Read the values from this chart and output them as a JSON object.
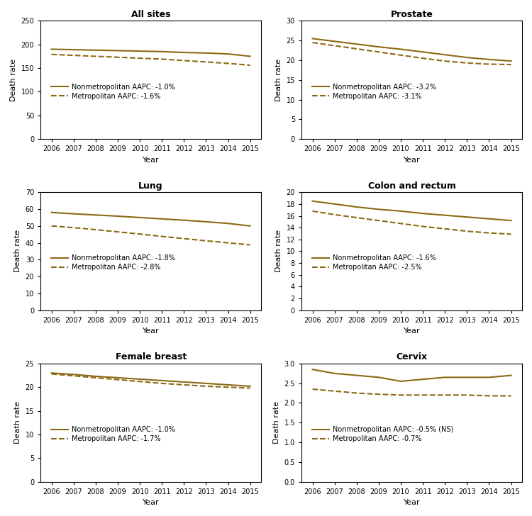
{
  "panels": [
    {
      "title": "All sites",
      "ylabel": "Death rate",
      "xlabel": "Year",
      "ylim": [
        0,
        250
      ],
      "yticks": [
        0,
        50,
        100,
        150,
        200,
        250
      ],
      "nonmet": [
        190,
        189,
        188,
        187,
        186,
        185,
        183,
        182,
        180,
        175
      ],
      "met": [
        179,
        177,
        175,
        173,
        171,
        169,
        166,
        163,
        160,
        156
      ],
      "legend1": "Nonmetropolitan AAPC: -1.0%",
      "legend2": "Metropolitan AAPC: -1.6%"
    },
    {
      "title": "Prostate",
      "ylabel": "Death rate",
      "xlabel": "Year",
      "ylim": [
        0,
        30
      ],
      "yticks": [
        0,
        5,
        10,
        15,
        20,
        25,
        30
      ],
      "nonmet": [
        25.5,
        24.8,
        24.1,
        23.4,
        22.8,
        22.1,
        21.4,
        20.7,
        20.2,
        19.8
      ],
      "met": [
        24.5,
        23.7,
        22.9,
        22.1,
        21.3,
        20.5,
        19.8,
        19.3,
        19.0,
        18.9
      ],
      "legend1": "Nonmetropolitan AAPC: -3.2%",
      "legend2": "Metropolitan AAPC: -3.1%"
    },
    {
      "title": "Lung",
      "ylabel": "Death rate",
      "xlabel": "Year",
      "ylim": [
        0,
        70
      ],
      "yticks": [
        0,
        10,
        20,
        30,
        40,
        50,
        60,
        70
      ],
      "nonmet": [
        58,
        57.2,
        56.5,
        55.8,
        55.0,
        54.2,
        53.4,
        52.5,
        51.5,
        50.0
      ],
      "met": [
        50,
        49.0,
        47.8,
        46.5,
        45.2,
        43.8,
        42.5,
        41.2,
        40.0,
        38.8
      ],
      "legend1": "Nonmetropolitan AAPC: -1.8%",
      "legend2": "Metropolitan AAPC: -2.8%"
    },
    {
      "title": "Colon and rectum",
      "ylabel": "Death rate",
      "xlabel": "Year",
      "ylim": [
        0,
        20
      ],
      "yticks": [
        0,
        2,
        4,
        6,
        8,
        10,
        12,
        14,
        16,
        18,
        20
      ],
      "nonmet": [
        18.5,
        18.0,
        17.5,
        17.1,
        16.8,
        16.4,
        16.1,
        15.8,
        15.5,
        15.2
      ],
      "met": [
        16.8,
        16.2,
        15.7,
        15.2,
        14.7,
        14.2,
        13.8,
        13.4,
        13.1,
        12.9
      ],
      "legend1": "Nonmetropolitan AAPC: -1.6%",
      "legend2": "Metropolitan AAPC: -2.5%"
    },
    {
      "title": "Female breast",
      "ylabel": "Death rate",
      "xlabel": "Year",
      "ylim": [
        0,
        25
      ],
      "yticks": [
        0,
        5,
        10,
        15,
        20,
        25
      ],
      "nonmet": [
        23.0,
        22.7,
        22.3,
        22.0,
        21.7,
        21.4,
        21.1,
        20.8,
        20.5,
        20.2
      ],
      "met": [
        22.8,
        22.4,
        22.0,
        21.6,
        21.2,
        20.8,
        20.5,
        20.2,
        20.0,
        19.8
      ],
      "legend1": "Nonmetropolitan AAPC: -1.0%",
      "legend2": "Metropolitan AAPC: -1.7%"
    },
    {
      "title": "Cervix",
      "ylabel": "Death rate",
      "xlabel": "Year",
      "ylim": [
        0,
        3
      ],
      "yticks": [
        0,
        0.5,
        1.0,
        1.5,
        2.0,
        2.5,
        3.0
      ],
      "nonmet": [
        2.85,
        2.75,
        2.7,
        2.65,
        2.55,
        2.6,
        2.65,
        2.65,
        2.65,
        2.7
      ],
      "met": [
        2.35,
        2.3,
        2.25,
        2.22,
        2.2,
        2.2,
        2.2,
        2.2,
        2.18,
        2.18
      ],
      "legend1": "Nonmetropolitan AAPC: -0.5% (NS)",
      "legend2": "Metropolitan AAPC: -0.7%"
    }
  ],
  "years": [
    2006,
    2007,
    2008,
    2009,
    2010,
    2011,
    2012,
    2013,
    2014,
    2015
  ],
  "line_color": "#8B6914",
  "background_color": "#ffffff",
  "title_fontsize": 9,
  "label_fontsize": 8,
  "tick_fontsize": 7,
  "legend_fontsize": 7,
  "linewidth": 1.5
}
